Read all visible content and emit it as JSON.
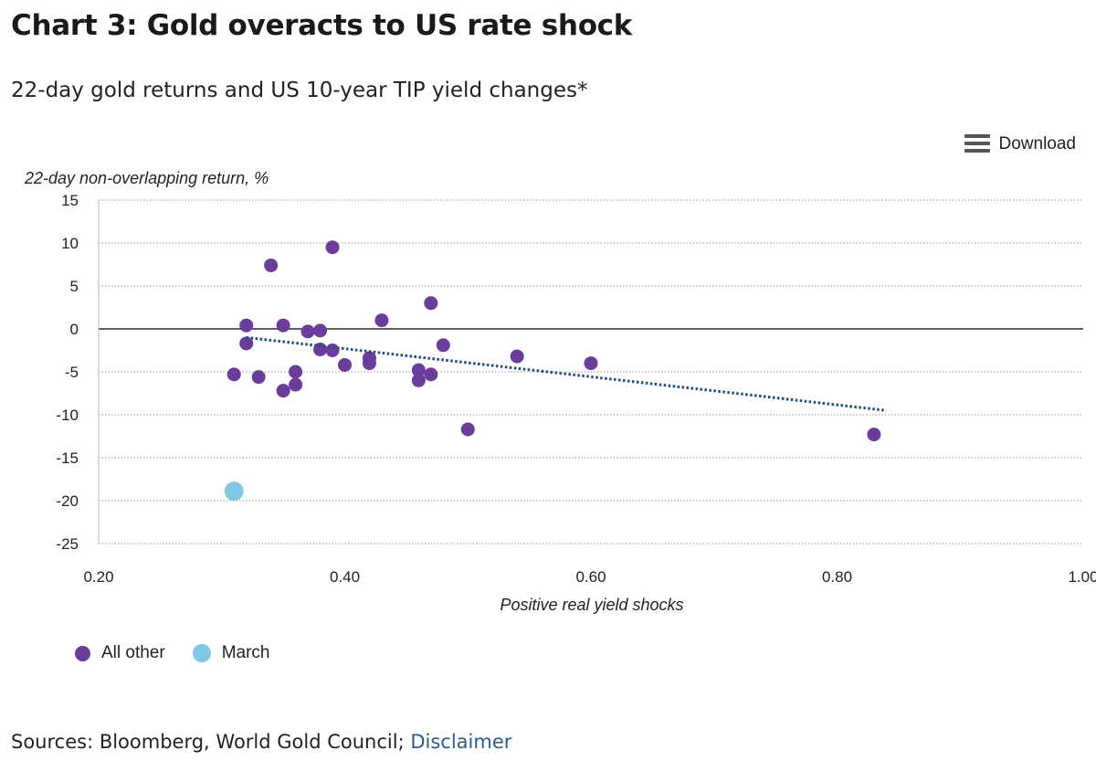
{
  "header": {
    "title": "Chart 3: Gold overacts to US rate shock",
    "subtitle": "22-day gold returns and US 10-year TIP yield changes*"
  },
  "toolbar": {
    "download_label": "Download",
    "download_icon": "menu-icon"
  },
  "footer": {
    "sources_text": "Sources: Bloomberg, World Gold Council; ",
    "disclaimer_label": "Disclaimer"
  },
  "colors": {
    "all_other": "#6a3d9a",
    "march": "#7ec8e3",
    "trend": "#1f4e79",
    "zero_line": "#000000"
  },
  "chart_data": {
    "type": "scatter",
    "ylabel": "22-day non-overlapping return, %",
    "xlabel": "Positive real yield shocks",
    "xlim": [
      0.2,
      1.0
    ],
    "ylim": [
      -25,
      15
    ],
    "x_ticks": [
      "0.20",
      "0.40",
      "0.60",
      "0.80",
      "1.00"
    ],
    "y_ticks": [
      "15",
      "10",
      "5",
      "0",
      "-5",
      "-10",
      "-15",
      "-20",
      "-25"
    ],
    "grid": "horizontal dotted",
    "legend_position": "bottom-left",
    "series": [
      {
        "name": "All other",
        "points": [
          [
            0.31,
            -5.3
          ],
          [
            0.32,
            0.4
          ],
          [
            0.32,
            -1.7
          ],
          [
            0.33,
            -5.6
          ],
          [
            0.34,
            7.4
          ],
          [
            0.35,
            0.4
          ],
          [
            0.35,
            -7.2
          ],
          [
            0.36,
            -5.0
          ],
          [
            0.36,
            -6.5
          ],
          [
            0.37,
            -0.3
          ],
          [
            0.38,
            -0.2
          ],
          [
            0.38,
            -2.4
          ],
          [
            0.39,
            9.5
          ],
          [
            0.39,
            -2.5
          ],
          [
            0.4,
            -4.2
          ],
          [
            0.42,
            -3.4
          ],
          [
            0.42,
            -4.0
          ],
          [
            0.43,
            1.0
          ],
          [
            0.46,
            -4.8
          ],
          [
            0.46,
            -6.0
          ],
          [
            0.47,
            3.0
          ],
          [
            0.47,
            -5.3
          ],
          [
            0.48,
            -1.9
          ],
          [
            0.5,
            -11.7
          ],
          [
            0.54,
            -3.2
          ],
          [
            0.6,
            -4.0
          ],
          [
            0.83,
            -12.3
          ]
        ]
      },
      {
        "name": "March",
        "points": [
          [
            0.31,
            -18.9
          ]
        ]
      }
    ],
    "trendline": {
      "style": "dotted",
      "start": [
        0.32,
        -1.0
      ],
      "end": [
        0.84,
        -9.5
      ]
    }
  }
}
